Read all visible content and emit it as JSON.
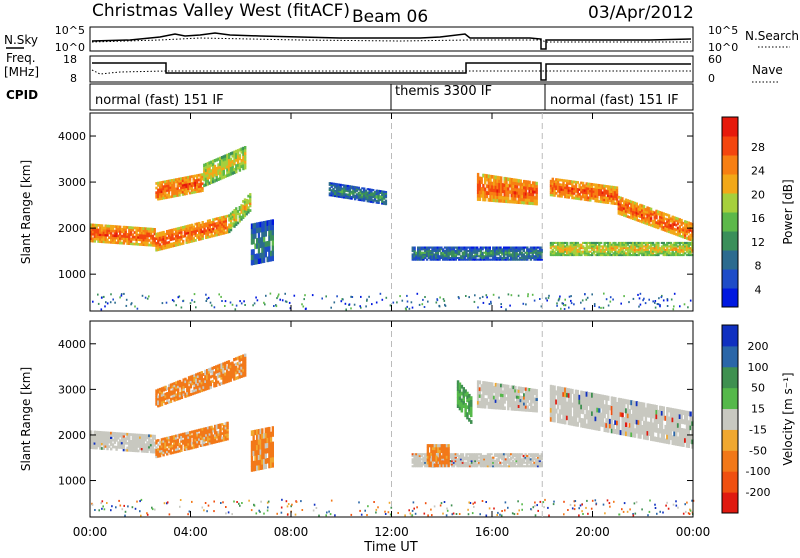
{
  "header": {
    "station": "Christmas Valley West (fitACF)",
    "beam": "Beam 06",
    "date": "03/Apr/2012"
  },
  "side_labels": {
    "nsky": "N.Sky",
    "freq": "Freq.",
    "freq_unit": "[MHz]",
    "cpid": "CPID",
    "nsearch": "N.Search",
    "nave": "Nave"
  },
  "noise_axis": {
    "left_ticks": [
      "10^5",
      "10^0"
    ],
    "right_ticks": [
      "10^5",
      "10^0"
    ]
  },
  "freq_axis": {
    "left_ticks": [
      "18",
      "8"
    ],
    "right_ticks": [
      "60",
      "0"
    ]
  },
  "cpid_segments": [
    {
      "label": "normal (fast) 151 IF",
      "start": 0,
      "end": 12
    },
    {
      "label": "themis 3300 IF",
      "start": 12,
      "end": 18
    },
    {
      "label": "normal (fast) 151 IF",
      "start": 18,
      "end": 24
    }
  ],
  "colors": {
    "power_scale": [
      "#0018e0",
      "#1e4cc8",
      "#2c6b8f",
      "#3a8f5a",
      "#5cb84a",
      "#a6cf3c",
      "#f2a818",
      "#f77f12",
      "#f4460e",
      "#e61a0c"
    ],
    "velocity_scale": [
      "#1030c0",
      "#2a66a8",
      "#3f9050",
      "#55b84a",
      "#c8c8c0",
      "#f0a830",
      "#f27818",
      "#f05010",
      "#e01a10"
    ]
  },
  "chart_data": [
    {
      "type": "heatmap",
      "title": "Power",
      "xlabel": "Time UT",
      "ylabel": "Slant Range [km]",
      "xlim": [
        0,
        24
      ],
      "ylim": [
        200,
        4500
      ],
      "x_ticks": [
        "00:00",
        "04:00",
        "08:00",
        "12:00",
        "16:00",
        "20:00",
        "00:00"
      ],
      "y_ticks": [
        "1000",
        "2000",
        "3000",
        "4000"
      ],
      "colorbar_label": "Power [dB]",
      "colorbar_ticks": [
        "4",
        "8",
        "12",
        "16",
        "20",
        "24",
        "28"
      ],
      "features": [
        {
          "t0": 0.0,
          "t1": 2.6,
          "r0": 1700,
          "r1": 2100,
          "r2": 1600,
          "r3": 2000,
          "level": "high"
        },
        {
          "t0": 2.6,
          "t1": 5.5,
          "r0": 1500,
          "r1": 1900,
          "r2": 1900,
          "r3": 2300,
          "level": "high"
        },
        {
          "t0": 5.5,
          "t1": 6.4,
          "r0": 1900,
          "r1": 2300,
          "r2": 2400,
          "r3": 2800,
          "level": "medium"
        },
        {
          "t0": 2.6,
          "t1": 4.5,
          "r0": 2600,
          "r1": 3000,
          "r2": 2800,
          "r3": 3200,
          "level": "high"
        },
        {
          "t0": 4.5,
          "t1": 6.2,
          "r0": 2900,
          "r1": 3400,
          "r2": 3300,
          "r3": 3800,
          "level": "medium"
        },
        {
          "t0": 6.4,
          "t1": 7.3,
          "r0": 1200,
          "r1": 2100,
          "r2": 1300,
          "r3": 2200,
          "level": "low"
        },
        {
          "t0": 9.5,
          "t1": 11.8,
          "r0": 2700,
          "r1": 3000,
          "r2": 2500,
          "r3": 2800,
          "level": "low"
        },
        {
          "t0": 15.4,
          "t1": 17.8,
          "r0": 2600,
          "r1": 3200,
          "r2": 2500,
          "r3": 3000,
          "level": "high"
        },
        {
          "t0": 12.8,
          "t1": 18.0,
          "r0": 1300,
          "r1": 1600,
          "r2": 1300,
          "r3": 1600,
          "level": "low"
        },
        {
          "t0": 18.3,
          "t1": 21.0,
          "r0": 2700,
          "r1": 3100,
          "r2": 2500,
          "r3": 2900,
          "level": "high"
        },
        {
          "t0": 21.0,
          "t1": 24.0,
          "r0": 2300,
          "r1": 2700,
          "r2": 1700,
          "r3": 2100,
          "level": "high"
        },
        {
          "t0": 18.3,
          "t1": 24.0,
          "r0": 1400,
          "r1": 1700,
          "r2": 1400,
          "r3": 1700,
          "level": "medium"
        }
      ]
    },
    {
      "type": "heatmap",
      "title": "Velocity",
      "xlabel": "Time UT",
      "ylabel": "Slant Range [km]",
      "xlim": [
        0,
        24
      ],
      "ylim": [
        200,
        4500
      ],
      "x_ticks": [
        "00:00",
        "04:00",
        "08:00",
        "12:00",
        "16:00",
        "20:00",
        "00:00"
      ],
      "y_ticks": [
        "1000",
        "2000",
        "3000",
        "4000"
      ],
      "colorbar_label": "Velocity [m s⁻¹]",
      "colorbar_ticks": [
        "200",
        "100",
        "50",
        "15",
        "-15",
        "-50",
        "-100",
        "-200"
      ],
      "features": [
        {
          "t0": 0.0,
          "t1": 2.6,
          "r0": 1700,
          "r1": 2100,
          "r2": 1600,
          "r3": 2000,
          "level": "zero"
        },
        {
          "t0": 2.6,
          "t1": 5.5,
          "r0": 1500,
          "r1": 1900,
          "r2": 1900,
          "r3": 2300,
          "level": "away"
        },
        {
          "t0": 2.6,
          "t1": 6.2,
          "r0": 2600,
          "r1": 3000,
          "r2": 3300,
          "r3": 3800,
          "level": "away"
        },
        {
          "t0": 6.4,
          "t1": 7.3,
          "r0": 1200,
          "r1": 2100,
          "r2": 1300,
          "r3": 2200,
          "level": "away"
        },
        {
          "t0": 15.4,
          "t1": 17.8,
          "r0": 2600,
          "r1": 3200,
          "r2": 2500,
          "r3": 3000,
          "level": "zero"
        },
        {
          "t0": 12.8,
          "t1": 18.0,
          "r0": 1300,
          "r1": 1600,
          "r2": 1300,
          "r3": 1600,
          "level": "zero"
        },
        {
          "t0": 18.3,
          "t1": 24.0,
          "r0": 2300,
          "r1": 3100,
          "r2": 1700,
          "r3": 2500,
          "level": "zero"
        },
        {
          "t0": 14.6,
          "t1": 15.2,
          "r0": 2600,
          "r1": 3200,
          "r2": 2200,
          "r3": 2800,
          "level": "toward"
        },
        {
          "t0": 13.4,
          "t1": 14.3,
          "r0": 1300,
          "r1": 1800,
          "r2": 1300,
          "r3": 1800,
          "level": "away"
        }
      ]
    }
  ],
  "xaxis_title": "Time UT"
}
